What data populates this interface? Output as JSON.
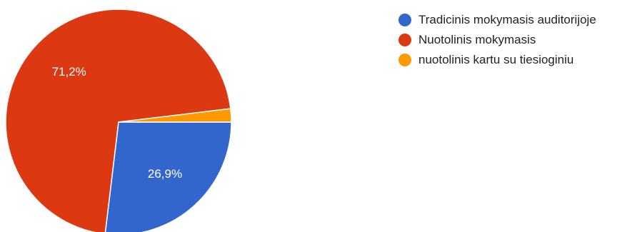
{
  "chart_data": {
    "type": "pie",
    "title": "",
    "slices": [
      {
        "label": "Tradicinis mokymasis auditorijoje",
        "value": 26.9,
        "display": "26,9%",
        "color": "#3366cc",
        "show_label": true
      },
      {
        "label": "Nuotolinis mokymasis",
        "value": 71.2,
        "display": "71,2%",
        "color": "#dc3912",
        "show_label": true
      },
      {
        "label": "nuotolinis kartu su tiesioginiu",
        "value": 1.9,
        "display": "1,9%",
        "color": "#ff9900",
        "show_label": false
      }
    ],
    "legend_position": "top-right",
    "start_angle": "3 o'clock",
    "direction": "clockwise"
  }
}
